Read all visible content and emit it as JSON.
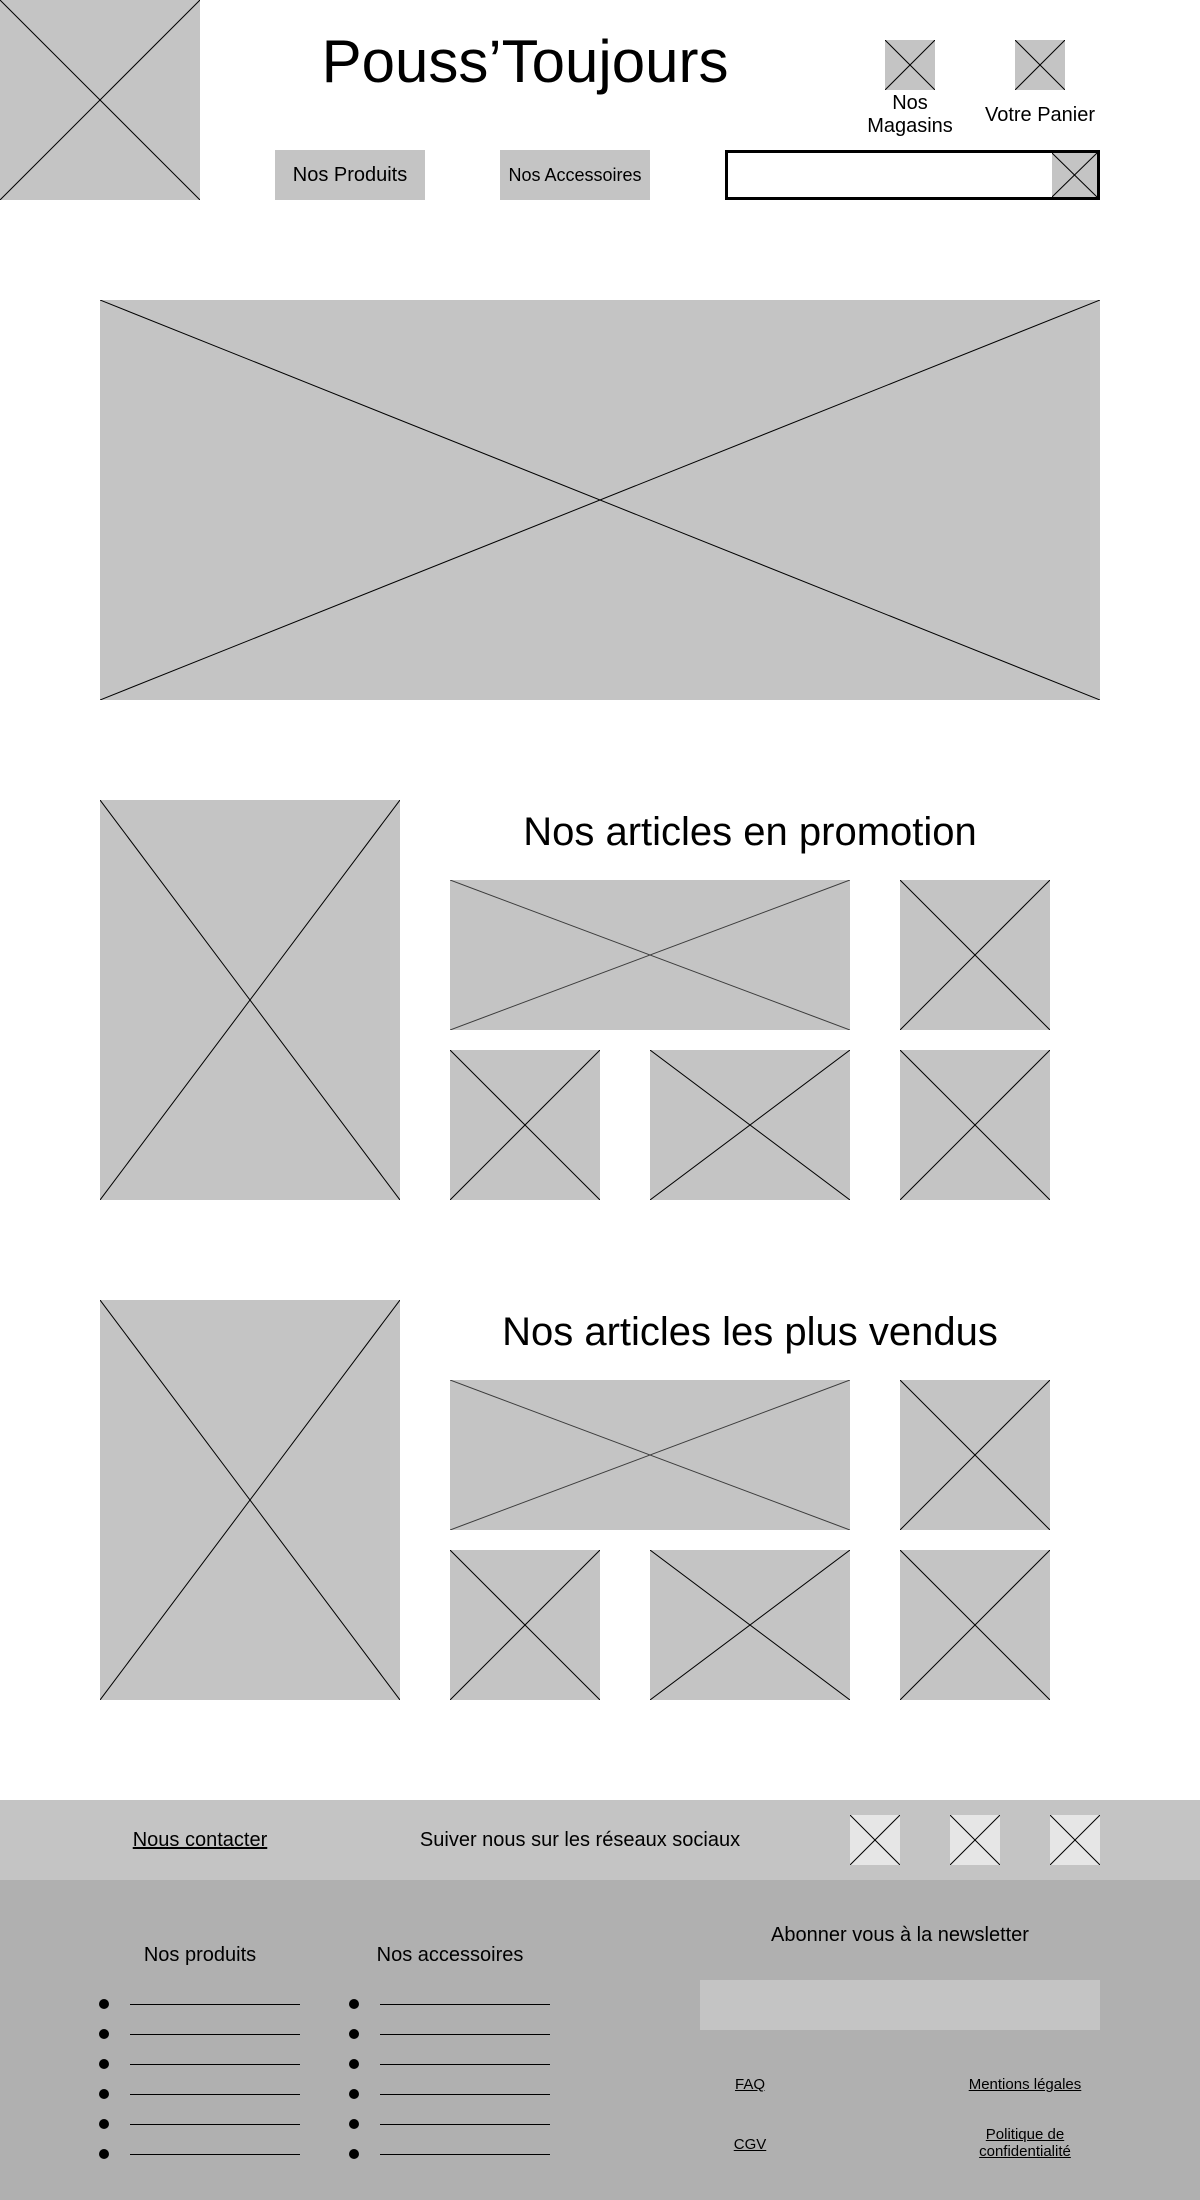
{
  "brand": {
    "title": "Pouss’Toujours"
  },
  "header": {
    "stores_label": "Nos Magasins",
    "cart_label": "Votre Panier",
    "nav": {
      "products": "Nos Produits",
      "accessories": "Nos Accessoires"
    },
    "search": {
      "value": "",
      "placeholder": ""
    }
  },
  "promotions": {
    "title": "Nos articles en promotion"
  },
  "bestsellers": {
    "title": "Nos articles les plus vendus"
  },
  "footer": {
    "contact": "Nous contacter",
    "social": "Suiver nous sur les réseaux sociaux",
    "products_title": "Nos produits",
    "accessories_title": "Nos accessoires",
    "newsletter_title": "Abonner vous à la newsletter",
    "links": {
      "faq": "FAQ",
      "legal": "Mentions légales",
      "cgv": "CGV",
      "privacy": "Politique de confidentialité"
    }
  },
  "icons": {
    "logo": "image-placeholder-icon",
    "stores": "store-icon",
    "cart": "cart-icon",
    "search": "search-icon",
    "social": [
      "social-icon-1",
      "social-icon-2",
      "social-icon-3"
    ]
  },
  "colors": {
    "placeholder": "#c4c4c4",
    "footer_top": "#c4c4c4",
    "footer_main": "#b0b0b0"
  }
}
